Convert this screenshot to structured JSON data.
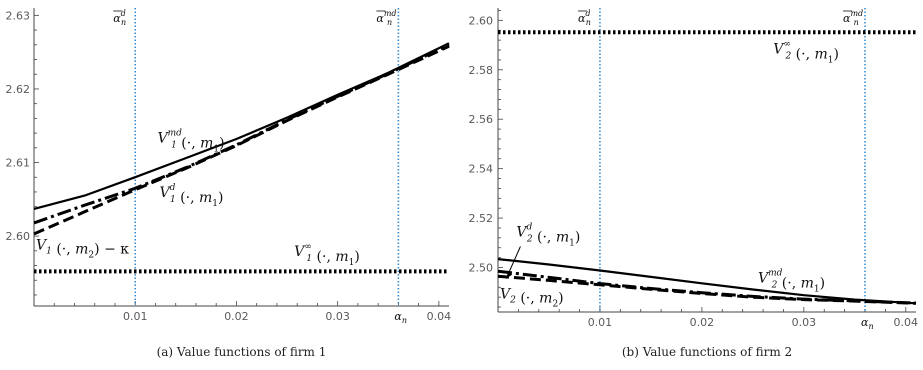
{
  "chart_data": [
    {
      "type": "line",
      "caption": "(a)  Value functions of firm 1",
      "xlim": [
        0,
        0.041
      ],
      "ylim": [
        2.5905,
        2.631
      ],
      "xticks": [
        {
          "value": 0.01,
          "label": "0.01"
        },
        {
          "value": 0.02,
          "label": "0.02"
        },
        {
          "value": 0.03,
          "label": "0.03"
        },
        {
          "value": 0.04,
          "label": "0.04"
        }
      ],
      "yticks": [
        {
          "value": 2.6,
          "label": "2.60"
        },
        {
          "value": 2.61,
          "label": "2.61"
        },
        {
          "value": 2.62,
          "label": "2.62"
        },
        {
          "value": 2.63,
          "label": "2.63"
        }
      ],
      "vlines": [
        {
          "value": 0.01,
          "label": "ᾱ",
          "sub": "n",
          "sup": "d"
        },
        {
          "value": 0.036,
          "label": "ᾱ",
          "sub": "n",
          "sup": "md"
        }
      ],
      "x_marker": {
        "value": 0.036,
        "label": "α",
        "sub": "n"
      },
      "series": [
        {
          "style": "solid",
          "x": [
            0,
            0.005,
            0.01,
            0.015,
            0.02,
            0.025,
            0.03,
            0.035,
            0.041
          ],
          "y": [
            2.6037,
            2.6055,
            2.608,
            2.6106,
            2.6132,
            2.6161,
            2.6192,
            2.6222,
            2.6262
          ]
        },
        {
          "style": "dashdot",
          "x": [
            0,
            0.005,
            0.01,
            0.015,
            0.02,
            0.025,
            0.03,
            0.035,
            0.041
          ],
          "y": [
            2.6018,
            2.6042,
            2.6065,
            2.6093,
            2.6124,
            2.6158,
            2.619,
            2.6221,
            2.626
          ]
        },
        {
          "style": "dashed",
          "x": [
            0,
            0.005,
            0.01,
            0.015,
            0.02,
            0.025,
            0.03,
            0.035,
            0.041
          ],
          "y": [
            2.6003,
            2.6033,
            2.6063,
            2.6092,
            2.6123,
            2.6157,
            2.6189,
            2.622,
            2.6258
          ]
        },
        {
          "style": "dotted",
          "x": [
            0,
            0.041
          ],
          "y": [
            2.5952,
            2.5952
          ]
        }
      ],
      "annotations": [
        {
          "text": "V",
          "sub": "1",
          "sup": "md",
          "args": "(·, m",
          "argsub": "1",
          "tail": ")",
          "x": 0.0122,
          "y": 2.6127
        },
        {
          "text": "V",
          "sub": "1",
          "sup": "d",
          "args": "(·, m",
          "argsub": "1",
          "tail": ")",
          "x": 0.0124,
          "y": 2.6053
        },
        {
          "text": "V",
          "sub": "1",
          "sup": "",
          "args": " (·, m",
          "argsub": "2",
          "tail": ") − κ",
          "x": 0.0002,
          "y": 2.5982
        },
        {
          "text": "V",
          "sub": "1",
          "sup": "∞",
          "args": "(·, m",
          "argsub": "1",
          "tail": ")",
          "x": 0.0257,
          "y": 2.5973
        }
      ]
    },
    {
      "type": "line",
      "caption": "(b)  Value functions of firm 2",
      "xlim": [
        0,
        0.041
      ],
      "ylim": [
        2.482,
        2.605
      ],
      "xticks": [
        {
          "value": 0.01,
          "label": "0.01"
        },
        {
          "value": 0.02,
          "label": "0.02"
        },
        {
          "value": 0.03,
          "label": "0.03"
        },
        {
          "value": 0.04,
          "label": "0.04"
        }
      ],
      "yticks": [
        {
          "value": 2.5,
          "label": "2.50"
        },
        {
          "value": 2.52,
          "label": "2.52"
        },
        {
          "value": 2.54,
          "label": "2.54"
        },
        {
          "value": 2.56,
          "label": "2.56"
        },
        {
          "value": 2.58,
          "label": "2.58"
        },
        {
          "value": 2.6,
          "label": "2.60"
        }
      ],
      "vlines": [
        {
          "value": 0.01,
          "label": "ᾱ",
          "sub": "n",
          "sup": "d"
        },
        {
          "value": 0.036,
          "label": "ᾱ",
          "sub": "n",
          "sup": "md"
        }
      ],
      "x_marker": {
        "value": 0.036,
        "label": "α",
        "sub": "n"
      },
      "series": [
        {
          "style": "solid",
          "x": [
            0,
            0.005,
            0.01,
            0.015,
            0.02,
            0.025,
            0.03,
            0.035,
            0.041
          ],
          "y": [
            2.5034,
            2.5012,
            2.4988,
            2.4962,
            2.4936,
            2.4911,
            2.4888,
            2.487,
            2.4855
          ]
        },
        {
          "style": "dashdot",
          "x": [
            0,
            0.005,
            0.01,
            0.015,
            0.02,
            0.025,
            0.03,
            0.035,
            0.041
          ],
          "y": [
            2.4985,
            2.496,
            2.4935,
            2.4915,
            2.4898,
            2.4883,
            2.4872,
            2.4865,
            2.4856
          ]
        },
        {
          "style": "dashed",
          "x": [
            0,
            0.005,
            0.01,
            0.015,
            0.02,
            0.025,
            0.03,
            0.035,
            0.041
          ],
          "y": [
            2.4965,
            2.4948,
            2.493,
            2.4912,
            2.4895,
            2.488,
            2.487,
            2.4864,
            2.4855
          ]
        },
        {
          "style": "dotted",
          "x": [
            0,
            0.041
          ],
          "y": [
            2.5952,
            2.5952
          ]
        }
      ],
      "annotations": [
        {
          "text": "V",
          "sub": "2",
          "sup": "∞",
          "args": "(·, m",
          "argsub": "1",
          "tail": ")",
          "x": 0.027,
          "y": 2.5865
        },
        {
          "text": "V",
          "sub": "2",
          "sup": "d",
          "args": "(·, m",
          "argsub": "1",
          "tail": ")",
          "x": 0.0018,
          "y": 2.5125
        },
        {
          "text": "V",
          "sub": "2",
          "sup": "md",
          "args": "(·, m",
          "argsub": "1",
          "tail": ")",
          "x": 0.0255,
          "y": 2.494
        },
        {
          "text": "V",
          "sub": "2",
          "sup": "",
          "args": " (·, m",
          "argsub": "2",
          "tail": ")",
          "x": 0.0002,
          "y": 2.4875
        }
      ]
    }
  ]
}
